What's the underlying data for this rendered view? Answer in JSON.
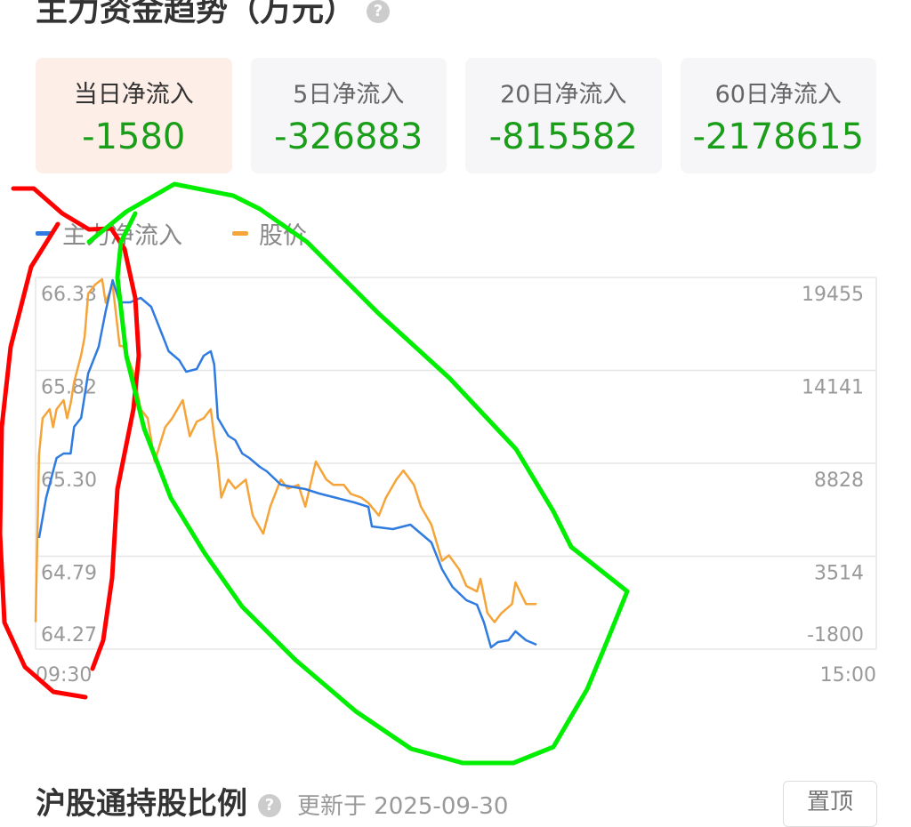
{
  "section_title": "主力资金趋势（万元）",
  "help_icon": "question-circle-icon",
  "cards": [
    {
      "label": "当日净流入",
      "value": "-1580",
      "active": true
    },
    {
      "label": "5日净流入",
      "value": "-326883"
    },
    {
      "label": "20日净流入",
      "value": "-815582"
    },
    {
      "label": "60日净流入",
      "value": "-2178615"
    }
  ],
  "colors": {
    "inflow_line": "#2f7be0",
    "price_line": "#f5a43a",
    "negative_value": "#1a9e1a",
    "active_card": "#fdeee7",
    "annotation_red": "#ff0000",
    "annotation_green": "#00ee00"
  },
  "chart_data": {
    "type": "line",
    "legend": [
      "主力净流入",
      "股价"
    ],
    "legend_placement": "top-left",
    "x_tick_labels": [
      "09:30",
      "15:00"
    ],
    "x_range": [
      "09:30",
      "15:00"
    ],
    "y_left": {
      "tick_labels": [
        "66.33",
        "65.82",
        "65.30",
        "64.79",
        "64.27"
      ],
      "range": [
        64.27,
        66.33
      ]
    },
    "y_right": {
      "tick_labels": [
        "19455",
        "14141",
        "8828",
        "3514",
        "-1800"
      ],
      "range": [
        -1800,
        19455
      ]
    },
    "grid": true,
    "series": [
      {
        "name": "主力净流入",
        "axis": "right",
        "x": [
          "09:31",
          "09:33",
          "09:35",
          "09:36",
          "09:38",
          "09:40",
          "09:41",
          "09:43",
          "09:45",
          "09:48",
          "09:50",
          "09:52",
          "09:54",
          "09:57",
          "10:00",
          "10:03",
          "10:06",
          "10:08",
          "10:11",
          "10:13",
          "10:16",
          "10:18",
          "10:20",
          "10:21",
          "10:22",
          "10:25",
          "10:27",
          "10:29",
          "10:31",
          "10:34",
          "10:36",
          "10:40",
          "10:44",
          "10:47",
          "10:51",
          "10:56",
          "11:01",
          "11:05",
          "11:06",
          "11:12",
          "11:17",
          "11:20",
          "11:23",
          "11:26",
          "11:29",
          "13:03",
          "13:06",
          "13:08",
          "13:10",
          "13:12",
          "13:15",
          "13:17",
          "13:20",
          "13:23"
        ],
        "values": [
          4556,
          6844,
          8370,
          9132,
          9387,
          9387,
          10912,
          11421,
          13963,
          15489,
          17523,
          19302,
          18031,
          18031,
          18285,
          17777,
          16251,
          15234,
          14726,
          14065,
          14217,
          14980,
          15234,
          14472,
          11421,
          10404,
          10149,
          9387,
          9132,
          8624,
          8370,
          7607,
          7454,
          7353,
          7098,
          6844,
          6590,
          6336,
          5217,
          5064,
          5319,
          4810,
          4302,
          2776,
          1759,
          996,
          742,
          -275,
          -1699,
          -1394,
          -1292,
          -783,
          -1292,
          -1546
        ]
      },
      {
        "name": "股价",
        "axis": "left",
        "x": [
          "09:30",
          "09:31",
          "09:32",
          "09:34",
          "09:35",
          "09:36",
          "09:38",
          "09:39",
          "09:40",
          "09:41",
          "09:43",
          "09:44",
          "09:45",
          "09:47",
          "09:49",
          "09:50",
          "09:52",
          "09:54",
          "09:55",
          "09:58",
          "09:59",
          "10:00",
          "10:02",
          "10:04",
          "10:07",
          "10:09",
          "10:12",
          "10:14",
          "10:16",
          "10:18",
          "10:20",
          "10:21",
          "10:22",
          "10:23",
          "10:25",
          "10:27",
          "10:30",
          "10:32",
          "10:35",
          "10:37",
          "10:40",
          "10:42",
          "10:45",
          "10:47",
          "10:50",
          "10:53",
          "10:55",
          "10:58",
          "11:00",
          "11:03",
          "11:05",
          "11:08",
          "11:10",
          "11:13",
          "11:15",
          "11:18",
          "11:20",
          "11:23",
          "11:26",
          "11:28",
          "13:01",
          "13:03",
          "13:06",
          "13:07",
          "13:09",
          "13:11",
          "13:13",
          "13:16",
          "13:17",
          "13:20",
          "13:23"
        ],
        "values": [
          64.42,
          65.35,
          65.55,
          65.6,
          65.5,
          65.6,
          65.65,
          65.55,
          65.63,
          65.75,
          65.9,
          66.0,
          66.24,
          66.29,
          66.32,
          66.19,
          66.29,
          65.95,
          65.95,
          65.8,
          65.7,
          65.6,
          65.55,
          65.31,
          65.5,
          65.55,
          65.65,
          65.45,
          65.53,
          65.55,
          65.6,
          65.45,
          65.31,
          65.11,
          65.21,
          65.16,
          65.21,
          65.01,
          64.91,
          65.06,
          65.21,
          65.16,
          65.18,
          65.06,
          65.31,
          65.21,
          65.18,
          65.18,
          65.13,
          65.11,
          65.08,
          65.01,
          65.11,
          65.21,
          65.26,
          65.18,
          65.06,
          64.96,
          64.76,
          64.79,
          64.71,
          64.62,
          64.59,
          64.66,
          64.47,
          64.42,
          64.47,
          64.52,
          64.64,
          64.52,
          64.52
        ]
      }
    ]
  },
  "next_section": {
    "title": "沪股通持股比例",
    "updated": "更新于 2025-09-30",
    "pin_button": "置顶"
  }
}
